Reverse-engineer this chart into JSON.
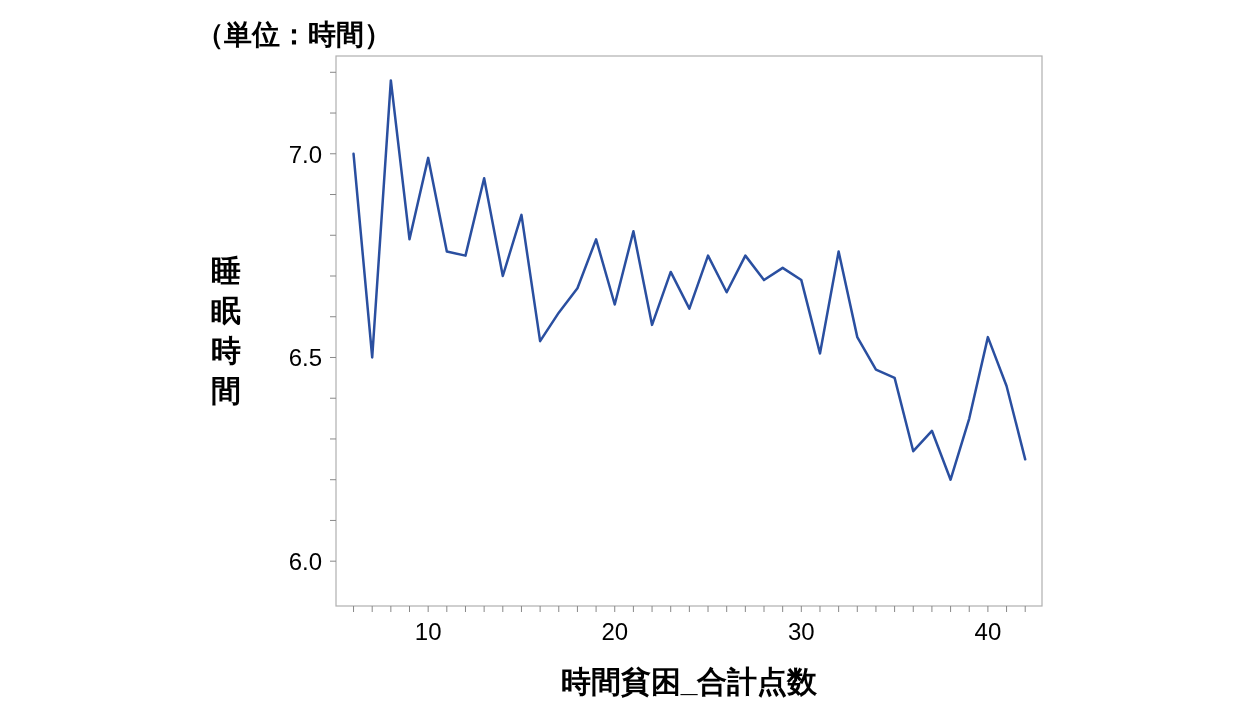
{
  "chart_data": {
    "type": "line",
    "xlabel": "時間貧困_合計点数",
    "ylabel": "睡眠時間",
    "annotations": [
      "（単位：時間）"
    ],
    "x": [
      6,
      7,
      8,
      9,
      10,
      11,
      12,
      13,
      14,
      15,
      16,
      17,
      18,
      19,
      20,
      21,
      22,
      23,
      24,
      25,
      26,
      27,
      28,
      29,
      30,
      31,
      32,
      33,
      34,
      35,
      36,
      37,
      38,
      39,
      40,
      41,
      42
    ],
    "series": [
      {
        "color": "#2a4fa0",
        "values": [
          7.0,
          6.5,
          7.18,
          6.79,
          6.99,
          6.76,
          6.75,
          6.94,
          6.7,
          6.85,
          6.54,
          6.61,
          6.67,
          6.79,
          6.63,
          6.81,
          6.58,
          6.71,
          6.62,
          6.75,
          6.66,
          6.75,
          6.69,
          6.72,
          6.69,
          6.51,
          6.76,
          6.55,
          6.47,
          6.45,
          6.27,
          6.32,
          6.2,
          6.35,
          6.55,
          6.43,
          6.25
        ]
      }
    ],
    "xlim": [
      5.06,
      42.9
    ],
    "ylim": [
      5.89,
      7.24
    ],
    "xticks": [
      {
        "value": 6,
        "label": null
      },
      {
        "value": 7,
        "label": null
      },
      {
        "value": 8,
        "label": null
      },
      {
        "value": 9,
        "label": null
      },
      10,
      {
        "value": 11,
        "label": null
      },
      {
        "value": 12,
        "label": null
      },
      {
        "value": 13,
        "label": null
      },
      {
        "value": 14,
        "label": null
      },
      {
        "value": 15,
        "label": null
      },
      {
        "value": 16,
        "label": null
      },
      {
        "value": 17,
        "label": null
      },
      {
        "value": 18,
        "label": null
      },
      {
        "value": 19,
        "label": null
      },
      20,
      {
        "value": 21,
        "label": null
      },
      {
        "value": 22,
        "label": null
      },
      {
        "value": 23,
        "label": null
      },
      {
        "value": 24,
        "label": null
      },
      {
        "value": 25,
        "label": null
      },
      {
        "value": 26,
        "label": null
      },
      {
        "value": 27,
        "label": null
      },
      {
        "value": 28,
        "label": null
      },
      {
        "value": 29,
        "label": null
      },
      30,
      {
        "value": 31,
        "label": null
      },
      {
        "value": 32,
        "label": null
      },
      {
        "value": 33,
        "label": null
      },
      {
        "value": 34,
        "label": null
      },
      {
        "value": 35,
        "label": null
      },
      {
        "value": 36,
        "label": null
      },
      {
        "value": 37,
        "label": null
      },
      {
        "value": 38,
        "label": null
      },
      {
        "value": 39,
        "label": null
      },
      40,
      {
        "value": 41,
        "label": null
      },
      {
        "value": 42,
        "label": null
      }
    ],
    "yticks": [
      {
        "value": 6.0,
        "label": "6.0"
      },
      {
        "value": 6.1,
        "label": null
      },
      {
        "value": 6.2,
        "label": null
      },
      {
        "value": 6.3,
        "label": null
      },
      {
        "value": 6.4,
        "label": null
      },
      {
        "value": 6.5,
        "label": "6.5"
      },
      {
        "value": 6.6,
        "label": null
      },
      {
        "value": 6.7,
        "label": null
      },
      {
        "value": 6.8,
        "label": null
      },
      {
        "value": 6.9,
        "label": null
      },
      {
        "value": 7.0,
        "label": "7.0"
      },
      {
        "value": 7.1,
        "label": null
      },
      {
        "value": 7.2,
        "label": null
      }
    ]
  }
}
